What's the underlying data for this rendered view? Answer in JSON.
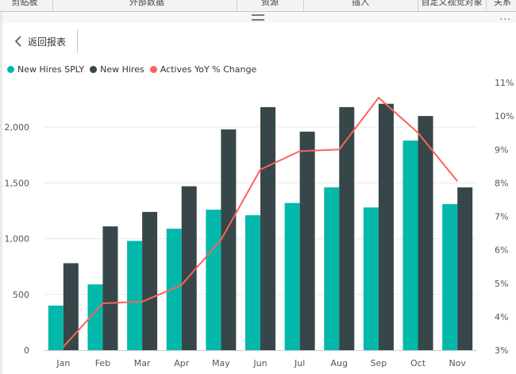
{
  "ribbon": {
    "groups": [
      "剪贴板",
      "外部数据",
      "资源",
      "插入",
      "自定义视觉对象",
      "关系"
    ]
  },
  "toolbar": {
    "more_label": "...",
    "back_label": "返回报表",
    "back_icon": "chevron-left-icon"
  },
  "legend": {
    "items": [
      {
        "label": "New Hires SPLY",
        "color": "#01b8aa"
      },
      {
        "label": "New Hires",
        "color": "#374649"
      },
      {
        "label": "Actives YoY % Change",
        "color": "#fd625e"
      }
    ]
  },
  "chart_data": {
    "type": "bar",
    "title": "",
    "xlabel": "",
    "ylabel": "",
    "categories": [
      "Jan",
      "Feb",
      "Mar",
      "Apr",
      "May",
      "Jun",
      "Jul",
      "Aug",
      "Sep",
      "Oct",
      "Nov"
    ],
    "series": [
      {
        "name": "New Hires SPLY",
        "type": "bar",
        "axis": "left",
        "color": "#01b8aa",
        "values": [
          400,
          590,
          980,
          1090,
          1260,
          1210,
          1320,
          1460,
          1280,
          1880,
          1310
        ]
      },
      {
        "name": "New Hires",
        "type": "bar",
        "axis": "left",
        "color": "#374649",
        "values": [
          780,
          1110,
          1240,
          1470,
          1980,
          2180,
          1960,
          2180,
          2210,
          2100,
          1460
        ]
      },
      {
        "name": "Actives YoY % Change",
        "type": "line",
        "axis": "right",
        "color": "#fd625e",
        "values": [
          3.1,
          4.4,
          4.45,
          4.95,
          6.3,
          8.4,
          8.95,
          9.0,
          10.55,
          9.5,
          8.05
        ]
      }
    ],
    "y_left": {
      "min": 0,
      "max": 2400,
      "ticks": [
        0,
        500,
        1000,
        1500,
        2000
      ],
      "tick_labels": [
        "0",
        "500",
        "1,000",
        "1,500",
        "2,000"
      ]
    },
    "y_right": {
      "min": 3,
      "max": 11,
      "ticks": [
        3,
        4,
        5,
        6,
        7,
        8,
        9,
        10,
        11
      ],
      "tick_labels": [
        "3%",
        "4%",
        "5%",
        "6%",
        "7%",
        "8%",
        "9%",
        "10%",
        "11%"
      ]
    },
    "grid": true,
    "legend_position": "top-left"
  }
}
